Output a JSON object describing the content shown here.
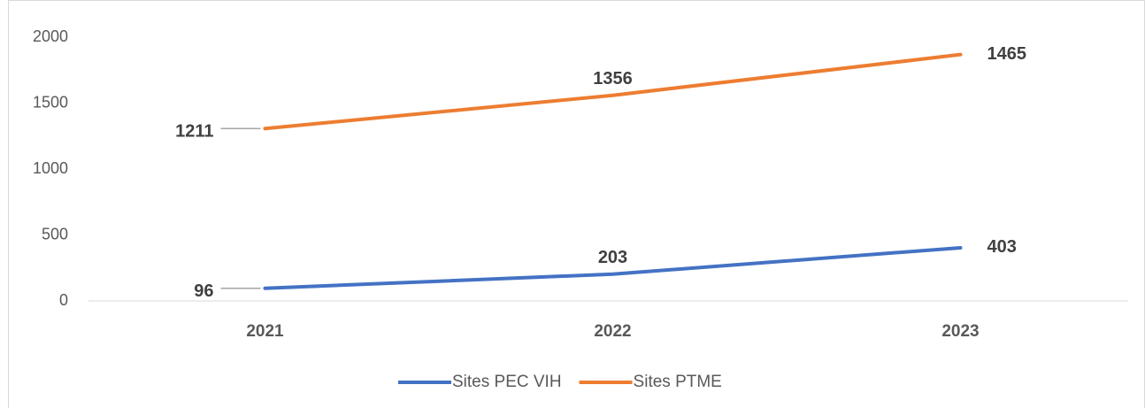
{
  "chart_data": {
    "type": "line",
    "stacked": true,
    "categories": [
      "2021",
      "2022",
      "2023"
    ],
    "series": [
      {
        "name": "Sites PEC VIH",
        "color": "#4472c4",
        "values": [
          96,
          203,
          403
        ]
      },
      {
        "name": "Sites PTME",
        "color": "#ed7d31",
        "values": [
          1211,
          1356,
          1465
        ]
      }
    ],
    "ylim": [
      0,
      2000
    ],
    "yticks": [
      0,
      500,
      1000,
      1500,
      2000
    ],
    "grid": false,
    "legend": "bottom"
  }
}
